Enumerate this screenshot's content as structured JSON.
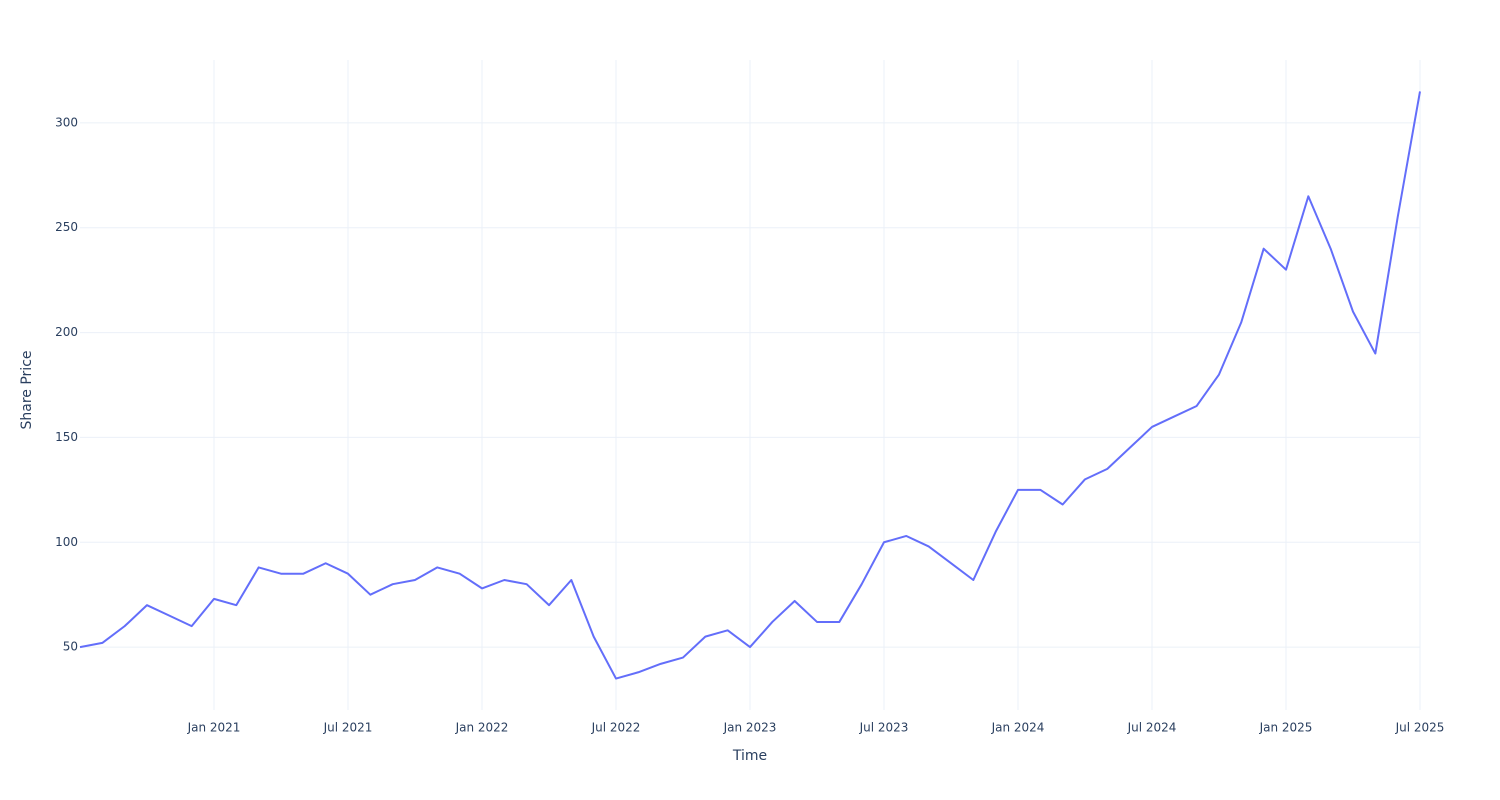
{
  "chart_data": {
    "type": "line",
    "x_title": "Time",
    "y_title": "Share Price",
    "x": [
      "2020-07",
      "2020-08",
      "2020-09",
      "2020-10",
      "2020-11",
      "2020-12",
      "2021-01",
      "2021-02",
      "2021-03",
      "2021-04",
      "2021-05",
      "2021-06",
      "2021-07",
      "2021-08",
      "2021-09",
      "2021-10",
      "2021-11",
      "2021-12",
      "2022-01",
      "2022-02",
      "2022-03",
      "2022-04",
      "2022-05",
      "2022-06",
      "2022-07",
      "2022-08",
      "2022-09",
      "2022-10",
      "2022-11",
      "2022-12",
      "2023-01",
      "2023-02",
      "2023-03",
      "2023-04",
      "2023-05",
      "2023-06",
      "2023-07",
      "2023-08",
      "2023-09",
      "2023-10",
      "2023-11",
      "2023-12",
      "2024-01",
      "2024-02",
      "2024-03",
      "2024-04",
      "2024-05",
      "2024-06",
      "2024-07",
      "2024-08",
      "2024-09",
      "2024-10",
      "2024-11",
      "2024-12",
      "2025-01",
      "2025-02",
      "2025-03",
      "2025-04",
      "2025-05",
      "2025-06",
      "2025-07"
    ],
    "series": [
      {
        "color": "#636efa",
        "values": [
          50,
          52,
          60,
          70,
          65,
          60,
          73,
          70,
          88,
          85,
          85,
          90,
          85,
          75,
          80,
          82,
          88,
          85,
          78,
          82,
          80,
          70,
          82,
          55,
          35,
          38,
          42,
          45,
          55,
          58,
          50,
          62,
          72,
          62,
          62,
          80,
          100,
          103,
          98,
          90,
          82,
          105,
          125,
          125,
          118,
          130,
          135,
          145,
          155,
          160,
          165,
          180,
          205,
          240,
          230,
          265,
          240,
          210,
          190,
          255,
          315
        ]
      }
    ],
    "xlim": [
      "2020-07",
      "2025-07"
    ],
    "xticks": [
      {
        "value": "2021-01",
        "label": "Jan 2021"
      },
      {
        "value": "2021-07",
        "label": "Jul 2021"
      },
      {
        "value": "2022-01",
        "label": "Jan 2022"
      },
      {
        "value": "2022-07",
        "label": "Jul 2022"
      },
      {
        "value": "2023-01",
        "label": "Jan 2023"
      },
      {
        "value": "2023-07",
        "label": "Jul 2023"
      },
      {
        "value": "2024-01",
        "label": "Jan 2024"
      },
      {
        "value": "2024-07",
        "label": "Jul 2024"
      },
      {
        "value": "2025-01",
        "label": "Jan 2025"
      },
      {
        "value": "2025-07",
        "label": "Jul 2025"
      }
    ],
    "ylim": [
      20,
      330
    ],
    "yticks": [
      50,
      100,
      150,
      200,
      250,
      300
    ],
    "grid": true
  }
}
